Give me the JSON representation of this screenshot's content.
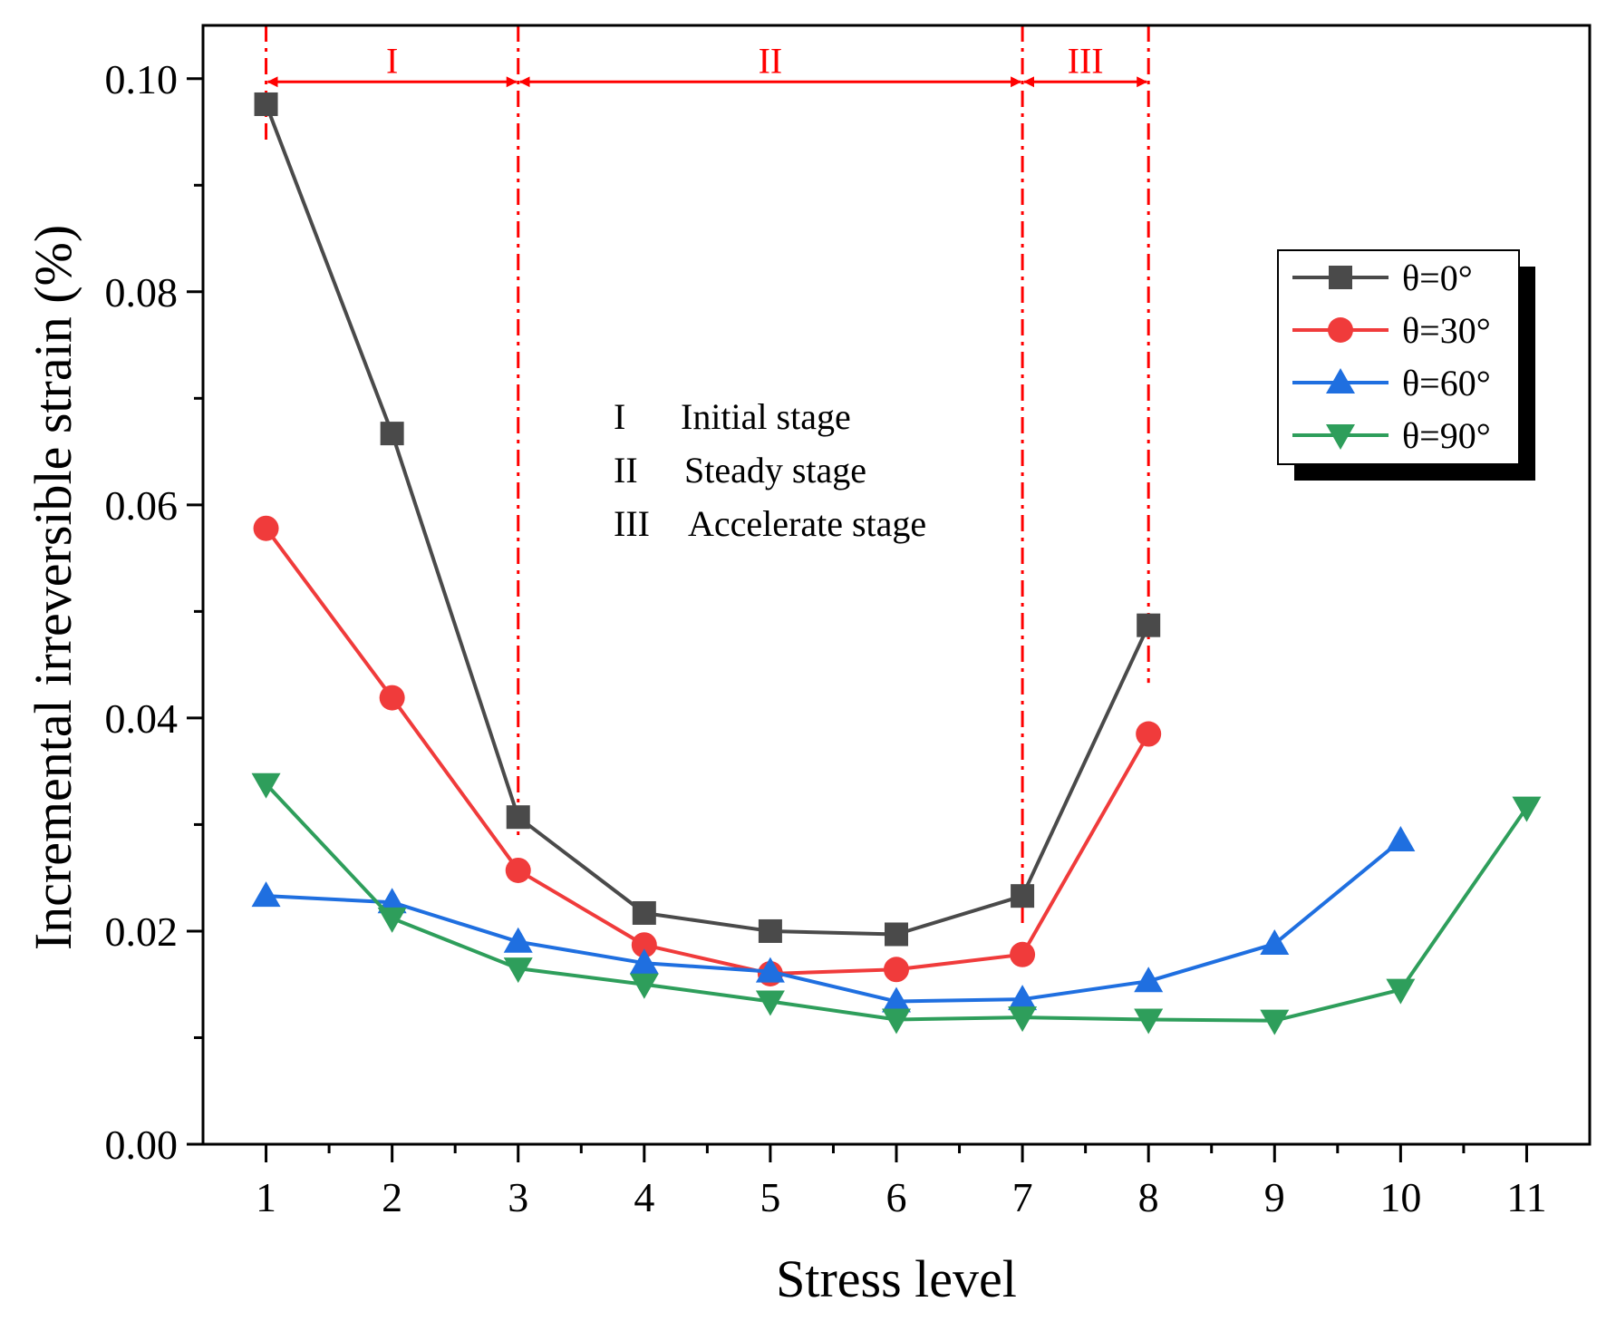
{
  "chart_data": {
    "type": "line",
    "title": "",
    "xlabel": "Stress level",
    "ylabel": "Incremental irreversible strain (%)",
    "xlim": [
      0.5,
      11.5
    ],
    "ylim": [
      0,
      0.105
    ],
    "x_ticks": [
      1,
      2,
      3,
      4,
      5,
      6,
      7,
      8,
      9,
      10,
      11
    ],
    "y_ticks": [
      0.0,
      0.02,
      0.04,
      0.06,
      0.08,
      0.1
    ],
    "y_tick_labels": [
      "0.00",
      "0.02",
      "0.04",
      "0.06",
      "0.08",
      "0.10"
    ],
    "grid": false,
    "legend_position": "top-right",
    "series": [
      {
        "name": "θ=0°",
        "color": "#4a4a4a",
        "marker": "square",
        "x": [
          1,
          2,
          3,
          4,
          5,
          6,
          7,
          8
        ],
        "y": [
          0.0976,
          0.0667,
          0.0307,
          0.0217,
          0.02,
          0.0197,
          0.0233,
          0.0487
        ]
      },
      {
        "name": "θ=30°",
        "color": "#f03b3b",
        "marker": "circle",
        "x": [
          1,
          2,
          3,
          4,
          5,
          6,
          7,
          8
        ],
        "y": [
          0.0578,
          0.0419,
          0.0257,
          0.0187,
          0.016,
          0.0164,
          0.0178,
          0.0385
        ]
      },
      {
        "name": "θ=60°",
        "color": "#1f6fe0",
        "marker": "triangle-up",
        "x": [
          1,
          2,
          3,
          4,
          5,
          6,
          7,
          8,
          9,
          10
        ],
        "y": [
          0.0233,
          0.0227,
          0.019,
          0.017,
          0.0162,
          0.0134,
          0.0136,
          0.0153,
          0.0188,
          0.0285
        ]
      },
      {
        "name": "θ=90°",
        "color": "#2e9e5b",
        "marker": "triangle-down",
        "x": [
          1,
          2,
          3,
          4,
          5,
          6,
          7,
          8,
          9,
          10,
          11
        ],
        "y": [
          0.0338,
          0.0212,
          0.0165,
          0.015,
          0.0134,
          0.0117,
          0.0119,
          0.0117,
          0.0116,
          0.0145,
          0.0316
        ]
      }
    ],
    "stage_boundaries": [
      1,
      3,
      7,
      8
    ],
    "stages": [
      {
        "label": "I",
        "from": 1,
        "to": 3
      },
      {
        "label": "II",
        "from": 3,
        "to": 7
      },
      {
        "label": "III",
        "from": 7,
        "to": 8
      }
    ],
    "stage_color": "#ff0000",
    "annotations": [
      {
        "roman": "I",
        "text": "Initial stage"
      },
      {
        "roman": "II",
        "text": "Steady stage"
      },
      {
        "roman": "III",
        "text": "Accelerate stage"
      }
    ]
  }
}
